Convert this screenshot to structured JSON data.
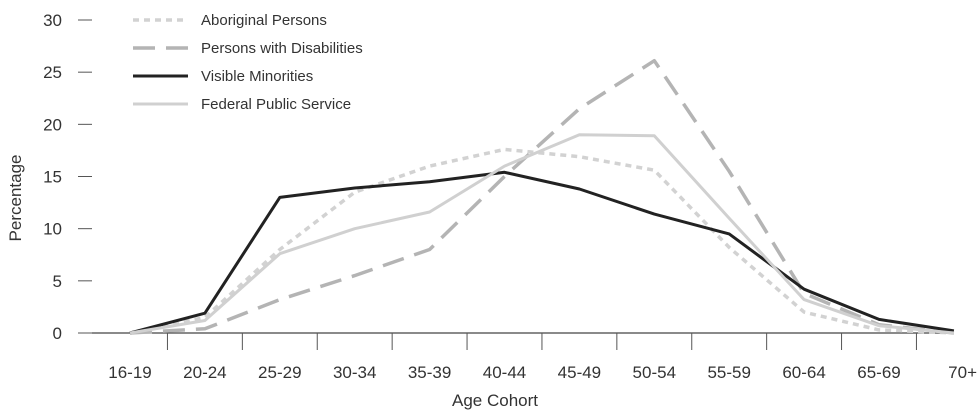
{
  "chart_data": {
    "type": "line",
    "title": "",
    "xlabel": "Age Cohort",
    "ylabel": "Percentage",
    "categories": [
      "16-19",
      "20-24",
      "25-29",
      "30-34",
      "35-39",
      "40-44",
      "45-49",
      "50-54",
      "55-59",
      "60-64",
      "65-69",
      "70+"
    ],
    "ylim": [
      0,
      30
    ],
    "yticks": [
      "0",
      "5",
      "10",
      "15",
      "20",
      "25",
      "30"
    ],
    "grid": false,
    "legend_position": "top-left",
    "series": [
      {
        "name": "Aboriginal Persons",
        "style": "dotted",
        "color": "#d2d2d2",
        "values": [
          0,
          1.5,
          8.0,
          13.5,
          16.0,
          17.6,
          16.9,
          15.6,
          8.2,
          2.0,
          0.3,
          0
        ]
      },
      {
        "name": "Persons with Disabilities",
        "style": "dashed",
        "color": "#b4b4b4",
        "values": [
          0,
          0.4,
          3.2,
          5.5,
          8.0,
          15.0,
          21.5,
          26.1,
          15.5,
          3.8,
          0.8,
          0
        ]
      },
      {
        "name": "Visible Minorities",
        "style": "solid",
        "color": "#222222",
        "values": [
          0,
          1.9,
          13.0,
          13.9,
          14.5,
          15.4,
          13.8,
          11.4,
          9.5,
          4.2,
          1.3,
          0.2
        ]
      },
      {
        "name": "Federal Public Service",
        "style": "solid",
        "color": "#d0d0d0",
        "values": [
          0,
          1.2,
          7.6,
          10.0,
          11.6,
          16.0,
          19.0,
          18.9,
          11.0,
          3.2,
          0.7,
          0
        ]
      }
    ]
  }
}
